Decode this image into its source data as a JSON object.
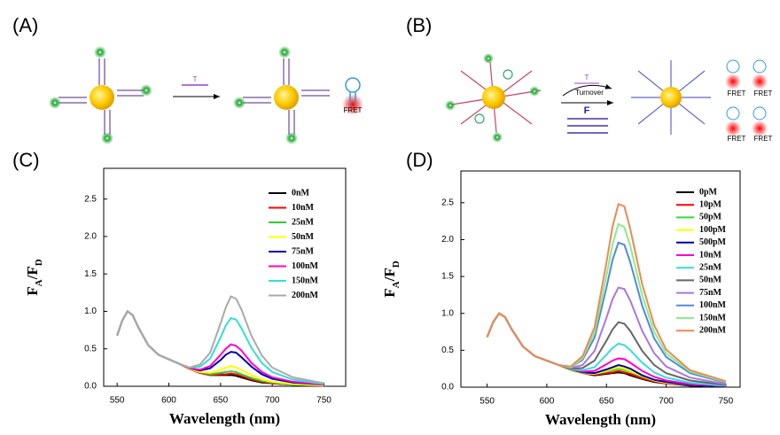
{
  "panel_labels": [
    "(A)",
    "(B)",
    "(C)",
    "(D)"
  ],
  "diagram_a": {
    "target": "T",
    "fret": "FRET"
  },
  "diagram_b": {
    "target": "T",
    "turnover": "Turnover",
    "fuel": "F",
    "fret": [
      "FRET",
      "FRET",
      "FRET",
      "FRET"
    ]
  },
  "chart_data": [
    {
      "type": "line",
      "xlabel": "Wavelength (nm)",
      "ylabel": [
        "F",
        "A",
        "/F",
        "D"
      ],
      "legend": "upper right",
      "grid": false,
      "x": [
        550,
        555,
        560,
        565,
        570,
        580,
        590,
        600,
        610,
        620,
        630,
        640,
        650,
        655,
        660,
        665,
        670,
        680,
        690,
        700,
        720,
        750
      ],
      "xlim": [
        537,
        771
      ],
      "xticks": [
        550,
        600,
        650,
        700,
        750
      ],
      "ylim": [
        0,
        2.91
      ],
      "yticks": [
        {
          "value": 0,
          "label": "0.0"
        },
        0.5,
        {
          "value": 1,
          "label": "1.0"
        },
        1.5,
        {
          "value": 2,
          "label": "2.0"
        },
        2.5
      ],
      "series": [
        {
          "name": "0nM",
          "color": "#000000",
          "values": [
            0.68,
            0.88,
            1.0,
            0.95,
            0.8,
            0.55,
            0.42,
            0.36,
            0.3,
            0.23,
            0.18,
            0.15,
            0.15,
            0.15,
            0.15,
            0.14,
            0.12,
            0.08,
            0.05,
            0.04,
            0.02,
            0.01
          ]
        },
        {
          "name": "10nM",
          "color": "#ff0000",
          "values": [
            0.68,
            0.88,
            1.0,
            0.95,
            0.8,
            0.55,
            0.42,
            0.36,
            0.3,
            0.23,
            0.18,
            0.15,
            0.16,
            0.16,
            0.17,
            0.16,
            0.14,
            0.09,
            0.06,
            0.04,
            0.02,
            0.01
          ]
        },
        {
          "name": "25nM",
          "color": "#33cc33",
          "values": [
            0.68,
            0.88,
            1.0,
            0.95,
            0.8,
            0.55,
            0.42,
            0.36,
            0.3,
            0.23,
            0.19,
            0.16,
            0.18,
            0.19,
            0.2,
            0.19,
            0.16,
            0.11,
            0.07,
            0.05,
            0.02,
            0.01
          ]
        },
        {
          "name": "50nM",
          "color": "#ffff00",
          "values": [
            0.68,
            0.88,
            1.0,
            0.95,
            0.8,
            0.55,
            0.42,
            0.36,
            0.3,
            0.23,
            0.19,
            0.18,
            0.22,
            0.25,
            0.27,
            0.25,
            0.22,
            0.15,
            0.09,
            0.06,
            0.03,
            0.01
          ]
        },
        {
          "name": "75nM",
          "color": "#0000aa",
          "values": [
            0.68,
            0.88,
            1.0,
            0.95,
            0.8,
            0.55,
            0.42,
            0.36,
            0.3,
            0.24,
            0.21,
            0.24,
            0.35,
            0.42,
            0.46,
            0.45,
            0.39,
            0.26,
            0.16,
            0.1,
            0.05,
            0.02
          ]
        },
        {
          "name": "100nM",
          "color": "#ff00cc",
          "values": [
            0.68,
            0.88,
            1.0,
            0.95,
            0.8,
            0.55,
            0.42,
            0.36,
            0.3,
            0.24,
            0.22,
            0.27,
            0.42,
            0.5,
            0.56,
            0.54,
            0.48,
            0.31,
            0.19,
            0.12,
            0.06,
            0.02
          ]
        },
        {
          "name": "150nM",
          "color": "#33dddd",
          "values": [
            0.68,
            0.88,
            1.0,
            0.95,
            0.8,
            0.55,
            0.42,
            0.36,
            0.3,
            0.25,
            0.26,
            0.37,
            0.65,
            0.81,
            0.91,
            0.89,
            0.78,
            0.51,
            0.31,
            0.19,
            0.09,
            0.03
          ]
        },
        {
          "name": "200nM",
          "color": "#aaaaaa",
          "values": [
            0.68,
            0.88,
            1.0,
            0.95,
            0.8,
            0.55,
            0.42,
            0.36,
            0.3,
            0.25,
            0.29,
            0.45,
            0.84,
            1.05,
            1.2,
            1.17,
            1.03,
            0.67,
            0.41,
            0.25,
            0.12,
            0.04
          ]
        }
      ]
    },
    {
      "type": "line",
      "xlabel": "Wavelength (nm)",
      "ylabel": [
        "F",
        "A",
        "/F",
        "D"
      ],
      "legend": "upper right",
      "grid": false,
      "x": [
        550,
        555,
        560,
        565,
        570,
        580,
        590,
        600,
        610,
        620,
        630,
        640,
        650,
        655,
        660,
        665,
        670,
        680,
        690,
        700,
        720,
        750
      ],
      "xlim": [
        528,
        762
      ],
      "xticks": [
        550,
        600,
        650,
        700,
        750
      ],
      "ylim": [
        0,
        2.93
      ],
      "yticks": [
        {
          "value": 0,
          "label": "0.0"
        },
        0.5,
        {
          "value": 1,
          "label": "1.0"
        },
        1.5,
        {
          "value": 2,
          "label": "2.0"
        },
        2.5
      ],
      "series": [
        {
          "name": "0pM",
          "color": "#000000",
          "values": [
            0.68,
            0.88,
            1.0,
            0.95,
            0.8,
            0.55,
            0.42,
            0.36,
            0.3,
            0.23,
            0.19,
            0.16,
            0.18,
            0.19,
            0.2,
            0.19,
            0.16,
            0.11,
            0.07,
            0.05,
            0.02,
            0.01
          ]
        },
        {
          "name": "10pM",
          "color": "#ff0000",
          "values": [
            0.68,
            0.88,
            1.0,
            0.95,
            0.8,
            0.55,
            0.42,
            0.36,
            0.3,
            0.23,
            0.19,
            0.17,
            0.19,
            0.2,
            0.22,
            0.2,
            0.18,
            0.12,
            0.08,
            0.05,
            0.03,
            0.01
          ]
        },
        {
          "name": "50pM",
          "color": "#33dd33",
          "values": [
            0.68,
            0.88,
            1.0,
            0.95,
            0.8,
            0.55,
            0.42,
            0.36,
            0.3,
            0.23,
            0.19,
            0.18,
            0.21,
            0.23,
            0.25,
            0.23,
            0.21,
            0.14,
            0.09,
            0.06,
            0.03,
            0.01
          ]
        },
        {
          "name": "100pM",
          "color": "#ffff00",
          "values": [
            0.68,
            0.88,
            1.0,
            0.95,
            0.8,
            0.55,
            0.42,
            0.36,
            0.3,
            0.23,
            0.19,
            0.18,
            0.22,
            0.25,
            0.27,
            0.25,
            0.22,
            0.15,
            0.09,
            0.06,
            0.03,
            0.01
          ]
        },
        {
          "name": "500pM",
          "color": "#0000aa",
          "values": [
            0.68,
            0.88,
            1.0,
            0.95,
            0.8,
            0.55,
            0.42,
            0.36,
            0.3,
            0.24,
            0.2,
            0.19,
            0.24,
            0.27,
            0.3,
            0.28,
            0.25,
            0.16,
            0.1,
            0.07,
            0.03,
            0.01
          ]
        },
        {
          "name": "10nM",
          "color": "#ff00cc",
          "values": [
            0.68,
            0.88,
            1.0,
            0.95,
            0.8,
            0.55,
            0.42,
            0.36,
            0.3,
            0.24,
            0.21,
            0.22,
            0.31,
            0.36,
            0.39,
            0.38,
            0.33,
            0.22,
            0.14,
            0.09,
            0.04,
            0.02
          ]
        },
        {
          "name": "25nM",
          "color": "#33dddd",
          "values": [
            0.68,
            0.88,
            1.0,
            0.95,
            0.8,
            0.55,
            0.42,
            0.36,
            0.3,
            0.24,
            0.23,
            0.27,
            0.44,
            0.53,
            0.59,
            0.57,
            0.5,
            0.33,
            0.2,
            0.13,
            0.06,
            0.02
          ]
        },
        {
          "name": "50nM",
          "color": "#666666",
          "values": [
            0.68,
            0.88,
            1.0,
            0.95,
            0.8,
            0.55,
            0.42,
            0.36,
            0.3,
            0.25,
            0.26,
            0.36,
            0.63,
            0.78,
            0.88,
            0.86,
            0.76,
            0.49,
            0.3,
            0.19,
            0.09,
            0.03
          ]
        },
        {
          "name": "75nM",
          "color": "#aa77dd",
          "values": [
            0.68,
            0.88,
            1.0,
            0.95,
            0.8,
            0.55,
            0.42,
            0.36,
            0.3,
            0.26,
            0.3,
            0.49,
            0.94,
            1.19,
            1.35,
            1.33,
            1.17,
            0.76,
            0.46,
            0.28,
            0.13,
            0.04
          ]
        },
        {
          "name": "100nM",
          "color": "#5588dd",
          "values": [
            0.68,
            0.88,
            1.0,
            0.95,
            0.8,
            0.55,
            0.42,
            0.36,
            0.3,
            0.27,
            0.37,
            0.67,
            1.35,
            1.72,
            1.96,
            1.93,
            1.69,
            1.1,
            0.66,
            0.41,
            0.19,
            0.06
          ]
        },
        {
          "name": "150nM",
          "color": "#88ee88",
          "values": [
            0.68,
            0.88,
            1.0,
            0.95,
            0.8,
            0.55,
            0.42,
            0.36,
            0.3,
            0.27,
            0.39,
            0.74,
            1.51,
            1.93,
            2.21,
            2.17,
            1.91,
            1.24,
            0.75,
            0.46,
            0.21,
            0.07
          ]
        },
        {
          "name": "200nM",
          "color": "#ee8855",
          "values": [
            0.68,
            0.88,
            1.0,
            0.95,
            0.8,
            0.55,
            0.42,
            0.36,
            0.3,
            0.28,
            0.42,
            0.81,
            1.69,
            2.17,
            2.48,
            2.45,
            2.14,
            1.39,
            0.84,
            0.51,
            0.23,
            0.08
          ]
        }
      ]
    }
  ]
}
